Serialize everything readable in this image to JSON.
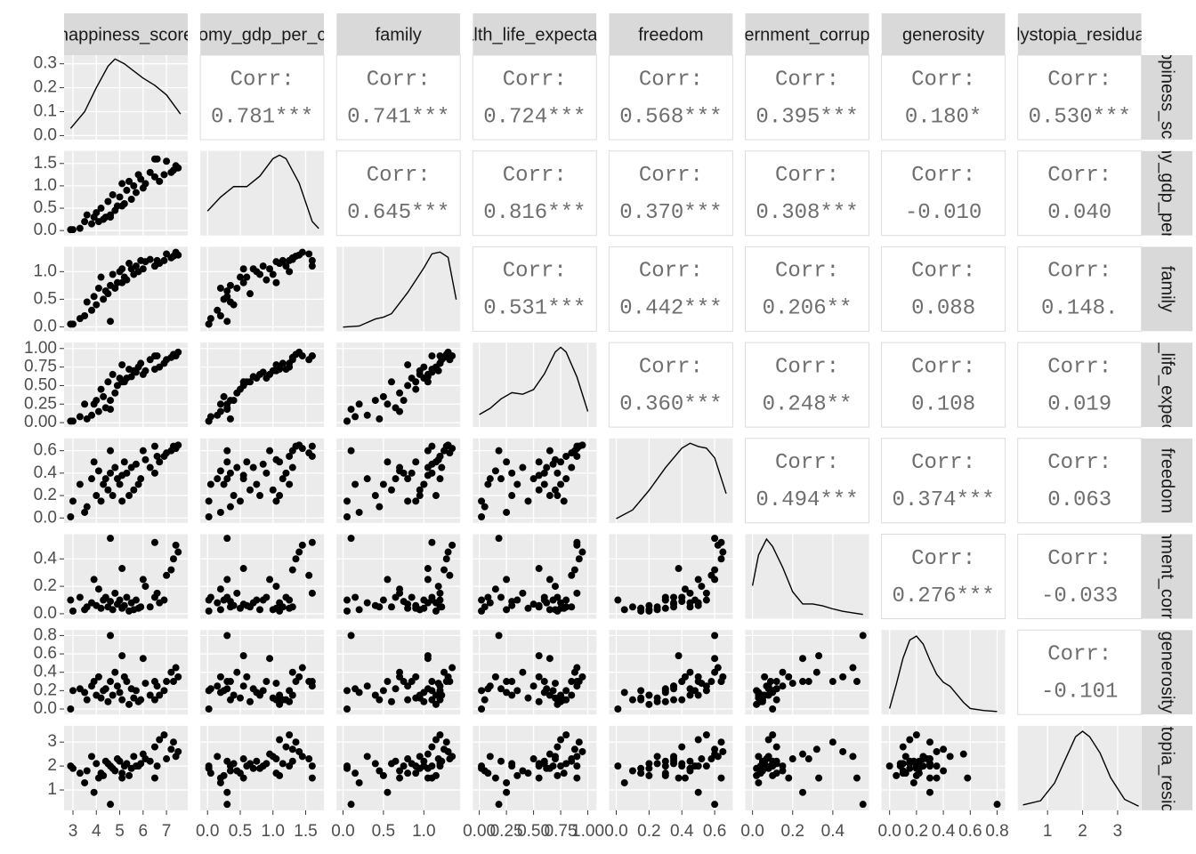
{
  "chart_data": {
    "type": "pairs",
    "color": "#000000",
    "corr_title": "Corr:",
    "variables": [
      {
        "name": "happiness_score",
        "lim": [
          2.62,
          7.91
        ],
        "ticks": [
          3,
          4,
          5,
          6,
          7
        ],
        "density": {
          "x": [
            2.9,
            3.5,
            4,
            4.5,
            4.8,
            5.2,
            5.6,
            6,
            6.5,
            7,
            7.3,
            7.6
          ],
          "y": [
            0.03,
            0.1,
            0.2,
            0.29,
            0.32,
            0.3,
            0.27,
            0.24,
            0.21,
            0.17,
            0.13,
            0.09
          ]
        },
        "density_ylim": [
          -0.017,
          0.336
        ]
      },
      {
        "name": "economy_gdp_per_capita",
        "lim": [
          -0.11,
          1.78
        ],
        "ticks": [
          {
            "value": 0,
            "label": "0.0"
          },
          0.5,
          {
            "value": 1,
            "label": "1.0"
          },
          1.5
        ],
        "density": {
          "x": [
            0,
            0.2,
            0.4,
            0.6,
            0.8,
            1.0,
            1.1,
            1.2,
            1.4,
            1.6,
            1.7
          ],
          "y": [
            0.3,
            0.5,
            0.65,
            0.65,
            0.8,
            1.05,
            1.1,
            1.05,
            0.7,
            0.15,
            0.05
          ]
        },
        "density_ylim": [
          -0.05,
          1.16
        ]
      },
      {
        "name": "family",
        "lim": [
          -0.08,
          1.45
        ],
        "ticks": [
          {
            "value": 0,
            "label": "0.0"
          },
          0.5,
          {
            "value": 1,
            "label": "1.0"
          }
        ],
        "density": {
          "x": [
            0,
            0.2,
            0.4,
            0.5,
            0.6,
            0.8,
            1.0,
            1.1,
            1.2,
            1.3,
            1.4
          ],
          "y": [
            0.02,
            0.05,
            0.25,
            0.3,
            0.4,
            1.0,
            1.7,
            2.1,
            2.15,
            2.0,
            0.8
          ]
        },
        "density_ylim": [
          -0.1,
          2.3
        ]
      },
      {
        "name": "health_life_expectancy",
        "lim": [
          -0.06,
          1.08
        ],
        "ticks": [
          {
            "value": 0,
            "label": "0.00"
          },
          0.25,
          {
            "value": 0.5,
            "label": "0.50"
          },
          0.75,
          {
            "value": 1,
            "label": "1.00"
          }
        ],
        "density": {
          "x": [
            0,
            0.1,
            0.2,
            0.3,
            0.4,
            0.5,
            0.6,
            0.7,
            0.75,
            0.8,
            0.9,
            1.0
          ],
          "y": [
            0.3,
            0.5,
            0.8,
            1.0,
            0.95,
            1.1,
            1.6,
            2.3,
            2.45,
            2.3,
            1.5,
            0.4
          ]
        },
        "density_ylim": [
          -0.1,
          2.6
        ]
      },
      {
        "name": "freedom",
        "lim": [
          -0.044,
          0.71
        ],
        "ticks": [
          {
            "value": 0,
            "label": "0.0"
          },
          0.2,
          0.4,
          0.6
        ],
        "density": {
          "x": [
            0,
            0.1,
            0.2,
            0.3,
            0.4,
            0.45,
            0.5,
            0.55,
            0.6,
            0.67
          ],
          "y": [
            0.03,
            0.3,
            0.9,
            1.6,
            2.2,
            2.35,
            2.25,
            2.2,
            1.9,
            0.8
          ]
        },
        "density_ylim": [
          -0.1,
          2.5
        ]
      },
      {
        "name": "government_corruption",
        "lim": [
          -0.036,
          0.58
        ],
        "ticks": [
          {
            "value": 0,
            "label": "0.0"
          },
          0.2,
          0.4
        ],
        "density": {
          "x": [
            0,
            0.03,
            0.07,
            0.1,
            0.15,
            0.2,
            0.25,
            0.3,
            0.35,
            0.4,
            0.45,
            0.55
          ],
          "y": [
            2.5,
            5.0,
            6.3,
            5.7,
            4.0,
            2.0,
            1.0,
            1.0,
            0.85,
            0.6,
            0.4,
            0.15
          ]
        },
        "density_ylim": [
          -0.2,
          6.7
        ]
      },
      {
        "name": "generosity",
        "lim": [
          -0.06,
          0.86
        ],
        "ticks": [
          {
            "value": 0,
            "label": "0.0"
          },
          0.2,
          0.4,
          0.6,
          0.8
        ],
        "density": {
          "x": [
            0,
            0.05,
            0.1,
            0.15,
            0.2,
            0.25,
            0.3,
            0.35,
            0.4,
            0.45,
            0.5,
            0.55,
            0.6,
            0.7,
            0.8
          ],
          "y": [
            0.2,
            1.4,
            2.7,
            3.6,
            3.8,
            3.4,
            2.6,
            1.9,
            1.5,
            1.3,
            0.9,
            0.5,
            0.2,
            0.1,
            0.05
          ]
        },
        "density_ylim": [
          -0.1,
          4.1
        ]
      },
      {
        "name": "dystopia_residual",
        "lim": [
          0.15,
          3.68
        ],
        "ticks": [
          1,
          2,
          3
        ],
        "density": {
          "x": [
            0.3,
            0.8,
            1.2,
            1.5,
            1.8,
            2.0,
            2.2,
            2.5,
            2.8,
            3.2,
            3.6
          ],
          "y": [
            0.02,
            0.05,
            0.18,
            0.35,
            0.52,
            0.56,
            0.52,
            0.4,
            0.22,
            0.06,
            0.01
          ]
        },
        "density_ylim": [
          -0.02,
          0.6
        ]
      }
    ],
    "density_yticks": [
      {
        "value": 0,
        "label": "0.0"
      },
      0.1,
      0.2,
      0.3
    ],
    "corr_values": [
      [
        0.781,
        0.741,
        0.724,
        0.568,
        0.395,
        0.18,
        0.53
      ],
      [
        0.645,
        0.816,
        0.37,
        0.308,
        -0.01,
        0.04
      ],
      [
        0.531,
        0.442,
        0.206,
        0.088,
        0.148
      ],
      [
        0.36,
        0.248,
        0.108,
        0.019
      ],
      [
        0.494,
        0.374,
        0.063
      ],
      [
        0.276,
        -0.033
      ],
      [
        -0.101
      ]
    ],
    "corr_labels": [
      [
        "0.781***",
        "0.741***",
        "0.724***",
        "0.568***",
        "0.395***",
        "0.180*",
        "0.530***"
      ],
      [
        "0.645***",
        "0.816***",
        "0.370***",
        "0.308***",
        "-0.010",
        "0.040"
      ],
      [
        "0.531***",
        "0.442***",
        "0.206**",
        "0.088",
        "0.148."
      ],
      [
        "0.360***",
        "0.248**",
        "0.108",
        "0.019"
      ],
      [
        "0.494***",
        "0.374***",
        "0.063"
      ],
      [
        "0.276***",
        "-0.033"
      ],
      [
        "-0.101"
      ]
    ],
    "observations": [
      [
        7.5,
        1.4,
        1.3,
        0.95,
        0.65,
        0.45,
        0.35,
        2.6
      ],
      [
        7.4,
        1.45,
        1.35,
        0.9,
        0.62,
        0.5,
        0.45,
        2.4
      ],
      [
        7.3,
        1.35,
        1.28,
        0.92,
        0.64,
        0.4,
        0.3,
        3.0
      ],
      [
        7.2,
        1.3,
        1.25,
        0.88,
        0.6,
        0.32,
        0.4,
        2.7
      ],
      [
        7.0,
        1.55,
        1.32,
        0.85,
        0.58,
        0.28,
        0.3,
        2.3
      ],
      [
        6.9,
        1.25,
        1.2,
        0.8,
        0.55,
        0.1,
        0.2,
        3.3
      ],
      [
        6.7,
        1.1,
        1.15,
        0.75,
        0.5,
        0.08,
        0.15,
        3.1
      ],
      [
        6.6,
        1.6,
        1.2,
        0.9,
        0.55,
        0.15,
        0.25,
        2.0
      ],
      [
        6.5,
        1.2,
        1.1,
        0.72,
        0.4,
        0.12,
        0.1,
        2.8
      ],
      [
        6.3,
        1.3,
        1.22,
        0.85,
        0.45,
        0.05,
        0.15,
        2.2
      ],
      [
        6.1,
        1.05,
        1.18,
        0.7,
        0.52,
        0.2,
        0.28,
        2.3
      ],
      [
        6.0,
        0.95,
        1.05,
        0.65,
        0.6,
        0.25,
        0.55,
        2.5
      ],
      [
        5.9,
        1.15,
        1.2,
        0.8,
        0.35,
        0.05,
        0.1,
        2.1
      ],
      [
        5.8,
        1.25,
        1.0,
        0.75,
        0.3,
        0.04,
        0.08,
        2.0
      ],
      [
        5.7,
        0.85,
        1.1,
        0.68,
        0.48,
        0.1,
        0.2,
        2.0
      ],
      [
        5.6,
        1.0,
        0.95,
        0.7,
        0.25,
        0.03,
        0.12,
        2.4
      ],
      [
        5.5,
        0.7,
        1.05,
        0.62,
        0.45,
        0.08,
        0.22,
        1.9
      ],
      [
        5.4,
        1.1,
        1.15,
        0.72,
        0.2,
        0.02,
        0.05,
        1.6
      ],
      [
        5.3,
        0.9,
        0.85,
        0.6,
        0.4,
        0.12,
        0.3,
        2.1
      ],
      [
        5.2,
        0.6,
        0.9,
        0.55,
        0.5,
        0.06,
        0.35,
        2.0
      ],
      [
        5.1,
        1.05,
        0.8,
        0.78,
        0.15,
        0.04,
        0.1,
        1.7
      ],
      [
        5.0,
        0.75,
        1.0,
        0.6,
        0.3,
        0.1,
        0.18,
        2.2
      ],
      [
        4.9,
        0.55,
        0.8,
        0.5,
        0.35,
        0.07,
        0.25,
        2.3
      ],
      [
        4.8,
        0.45,
        0.7,
        0.4,
        0.45,
        0.15,
        0.4,
        1.8
      ],
      [
        4.7,
        0.8,
        0.95,
        0.65,
        0.2,
        0.03,
        0.15,
        1.9
      ],
      [
        4.6,
        0.35,
        0.75,
        0.3,
        0.4,
        0.09,
        0.3,
        2.0
      ],
      [
        4.5,
        0.65,
        0.6,
        0.55,
        0.25,
        0.05,
        0.08,
        2.1
      ],
      [
        4.4,
        0.3,
        0.65,
        0.2,
        0.35,
        0.12,
        0.22,
        2.2
      ],
      [
        4.3,
        0.25,
        0.5,
        0.35,
        0.3,
        0.1,
        0.2,
        1.6
      ],
      [
        4.2,
        0.5,
        0.9,
        0.45,
        0.15,
        0.04,
        0.12,
        1.7
      ],
      [
        4.1,
        0.2,
        0.7,
        0.15,
        0.42,
        0.18,
        0.35,
        1.5
      ],
      [
        4.0,
        0.4,
        0.4,
        0.3,
        0.2,
        0.06,
        0.15,
        2.1
      ],
      [
        3.9,
        0.3,
        0.55,
        0.25,
        0.5,
        0.25,
        0.3,
        0.9
      ],
      [
        3.8,
        0.15,
        0.3,
        0.1,
        0.35,
        0.08,
        0.25,
        2.4
      ],
      [
        3.6,
        0.35,
        0.45,
        0.05,
        0.1,
        0.05,
        0.1,
        1.8
      ],
      [
        3.5,
        0.2,
        0.2,
        0.25,
        0.05,
        0.03,
        0.18,
        1.3
      ],
      [
        3.3,
        0.05,
        0.15,
        0.08,
        0.3,
        0.12,
        0.22,
        1.7
      ],
      [
        3.0,
        0.02,
        0.05,
        0.02,
        0.15,
        0.02,
        0.2,
        1.9
      ],
      [
        2.9,
        0.02,
        0.05,
        0.02,
        0.01,
        0.1,
        0.0,
        2.0
      ],
      [
        4.6,
        0.3,
        0.1,
        0.18,
        0.6,
        0.55,
        0.8,
        0.4
      ],
      [
        5.1,
        0.55,
        1.05,
        0.55,
        0.38,
        0.33,
        0.58,
        1.5
      ],
      [
        6.5,
        1.6,
        1.1,
        0.9,
        0.64,
        0.52,
        0.3,
        1.5
      ]
    ]
  }
}
